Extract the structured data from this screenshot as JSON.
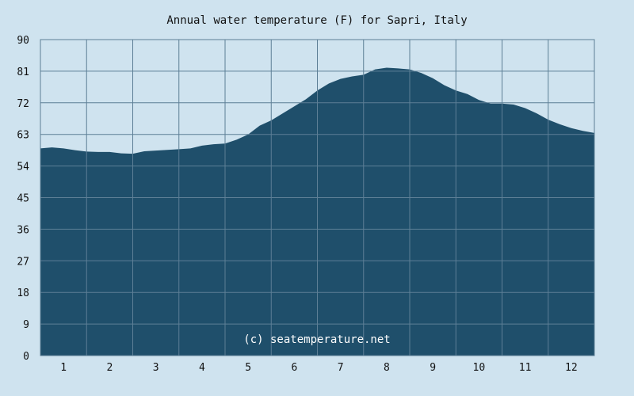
{
  "chart_data": {
    "type": "area",
    "title": "Annual water temperature (F) for Sapri, Italy",
    "xlabel": "",
    "ylabel": "",
    "x_tick_labels": [
      "1",
      "2",
      "3",
      "4",
      "5",
      "6",
      "7",
      "8",
      "9",
      "10",
      "11",
      "12"
    ],
    "y_ticks": [
      0,
      9,
      18,
      27,
      36,
      45,
      54,
      63,
      72,
      81,
      90
    ],
    "ylim": [
      0,
      90
    ],
    "xlim": [
      0.5,
      12.5
    ],
    "grid": true,
    "annotation": "(c) seatemperature.net",
    "series": [
      {
        "x": [
          0.5,
          0.75,
          1.0,
          1.25,
          1.5,
          1.75,
          2.0,
          2.25,
          2.5,
          2.75,
          3.0,
          3.25,
          3.5,
          3.75,
          4.0,
          4.25,
          4.5,
          4.75,
          5.0,
          5.25,
          5.5,
          5.75,
          6.0,
          6.25,
          6.5,
          6.75,
          7.0,
          7.25,
          7.5,
          7.75,
          8.0,
          8.25,
          8.5,
          8.75,
          9.0,
          9.25,
          9.5,
          9.75,
          10.0,
          10.25,
          10.5,
          10.75,
          11.0,
          11.25,
          11.5,
          11.75,
          12.0,
          12.25,
          12.5
        ],
        "values": [
          59.0,
          59.3,
          59.0,
          58.5,
          58.1,
          58.0,
          58.0,
          57.6,
          57.5,
          58.2,
          58.4,
          58.6,
          58.8,
          59.0,
          59.8,
          60.2,
          60.4,
          61.5,
          63.0,
          65.5,
          67.0,
          69.0,
          71.0,
          73.0,
          75.5,
          77.5,
          78.8,
          79.5,
          80.0,
          81.5,
          82.0,
          81.8,
          81.5,
          80.5,
          79.0,
          77.0,
          75.5,
          74.5,
          72.8,
          71.8,
          71.8,
          71.5,
          70.5,
          69.0,
          67.2,
          65.9,
          64.8,
          64.0,
          63.4
        ]
      }
    ],
    "colors": {
      "background": "#cfe3ef",
      "area_fill": "#1f4f6b",
      "grid": "#5d7f96"
    }
  }
}
